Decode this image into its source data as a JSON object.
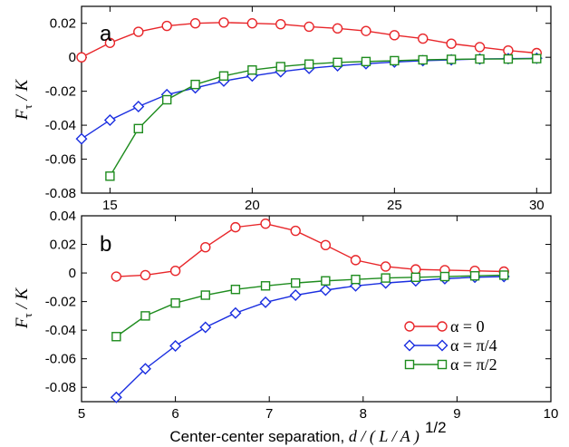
{
  "chart_data": [
    {
      "panel": "a",
      "type": "line",
      "xlim": [
        14,
        30.5
      ],
      "ylim": [
        -0.08,
        0.03
      ],
      "xticks": [
        15,
        20,
        25,
        30
      ],
      "yticks": [
        0.02,
        0,
        -0.02,
        -0.04,
        -0.06,
        -0.08
      ],
      "ytick_labels": [
        "0.02",
        "0",
        "-0.02",
        "-0.04",
        "-0.06",
        "-0.08"
      ],
      "ylabel": [
        "F",
        "τ",
        " / K"
      ],
      "series": [
        {
          "name": "α = 0",
          "color": "#e8262a",
          "marker": "circle",
          "x": [
            14,
            15,
            16,
            17,
            18,
            19,
            20,
            21,
            22,
            23,
            24,
            25,
            26,
            27,
            28,
            29,
            30
          ],
          "y": [
            0.0,
            0.0085,
            0.015,
            0.0185,
            0.02,
            0.0205,
            0.02,
            0.0195,
            0.018,
            0.017,
            0.0155,
            0.013,
            0.011,
            0.008,
            0.006,
            0.004,
            0.0025
          ]
        },
        {
          "name": "α = π/4",
          "color": "#1a2ee0",
          "marker": "diamond",
          "x": [
            14,
            15,
            16,
            17,
            18,
            19,
            20,
            21,
            22,
            23,
            24,
            25,
            26,
            27,
            28,
            29,
            30
          ],
          "y": [
            -0.048,
            -0.037,
            -0.029,
            -0.022,
            -0.018,
            -0.014,
            -0.011,
            -0.0085,
            -0.0065,
            -0.005,
            -0.0038,
            -0.0028,
            -0.002,
            -0.0015,
            -0.001,
            -0.0008,
            -0.0006
          ]
        },
        {
          "name": "α = π/2",
          "color": "#1e8c1e",
          "marker": "square",
          "x": [
            15,
            16,
            17,
            18,
            19,
            20,
            21,
            22,
            23,
            24,
            25,
            26,
            27,
            28,
            29,
            30
          ],
          "y": [
            -0.07,
            -0.042,
            -0.025,
            -0.016,
            -0.011,
            -0.0075,
            -0.0055,
            -0.004,
            -0.003,
            -0.0025,
            -0.002,
            -0.0015,
            -0.0012,
            -0.001,
            -0.001,
            -0.0008
          ]
        }
      ]
    },
    {
      "panel": "b",
      "type": "line",
      "xlim": [
        5,
        10
      ],
      "ylim": [
        -0.09,
        0.04
      ],
      "xticks": [
        5,
        6,
        7,
        8,
        9,
        10
      ],
      "yticks": [
        0.04,
        0.02,
        0,
        -0.02,
        -0.04,
        -0.06,
        -0.08
      ],
      "ytick_labels": [
        "0.04",
        "0.02",
        "0",
        "-0.02",
        "-0.04",
        "-0.06",
        "-0.08"
      ],
      "ylabel": [
        "F",
        "τ",
        " / K"
      ],
      "xlabel": {
        "prefix": "Center-center separation, ",
        "expr": "d / ( L / A )",
        "exponent": "1/2"
      },
      "legend": {
        "position": "lower-right",
        "entries": [
          "α = 0",
          "α = π/4",
          "α = π/2"
        ]
      },
      "series": [
        {
          "name": "α = 0",
          "color": "#e8262a",
          "marker": "circle",
          "x": [
            5.37,
            5.68,
            6.0,
            6.32,
            6.64,
            6.96,
            7.28,
            7.6,
            7.92,
            8.24,
            8.56,
            8.87,
            9.19,
            9.5
          ],
          "y": [
            -0.0025,
            -0.0015,
            0.0015,
            0.018,
            0.032,
            0.0345,
            0.0295,
            0.0195,
            0.009,
            0.0045,
            0.0025,
            0.002,
            0.0015,
            0.001
          ]
        },
        {
          "name": "α = π/4",
          "color": "#1a2ee0",
          "marker": "diamond",
          "x": [
            5.37,
            5.68,
            6.0,
            6.32,
            6.64,
            6.96,
            7.28,
            7.6,
            7.92,
            8.24,
            8.56,
            8.87,
            9.19,
            9.5
          ],
          "y": [
            -0.087,
            -0.067,
            -0.051,
            -0.038,
            -0.028,
            -0.0205,
            -0.0155,
            -0.012,
            -0.009,
            -0.007,
            -0.0055,
            -0.004,
            -0.003,
            -0.0025
          ]
        },
        {
          "name": "α = π/2",
          "color": "#1e8c1e",
          "marker": "square",
          "x": [
            5.37,
            5.68,
            6.0,
            6.32,
            6.64,
            6.96,
            7.28,
            7.6,
            7.92,
            8.24,
            8.56,
            8.87,
            9.19,
            9.5
          ],
          "y": [
            -0.0445,
            -0.03,
            -0.021,
            -0.0155,
            -0.0115,
            -0.009,
            -0.007,
            -0.0055,
            -0.0045,
            -0.0035,
            -0.003,
            -0.0025,
            -0.002,
            -0.0015
          ]
        }
      ]
    }
  ]
}
